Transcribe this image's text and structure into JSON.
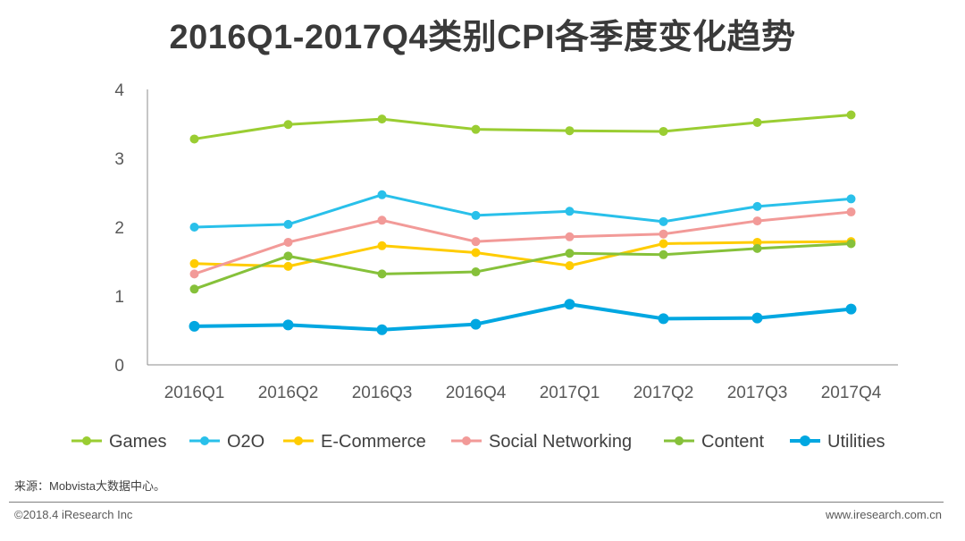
{
  "chart_data": {
    "type": "line",
    "title": "2016Q1-2017Q4类别CPI各季度变化趋势",
    "xlabel": "",
    "ylabel": "",
    "ylim": [
      0,
      4
    ],
    "yticks": [
      "0",
      "1",
      "2",
      "3",
      "4"
    ],
    "grid": false,
    "legend_position": "bottom",
    "categories": [
      "2016Q1",
      "2016Q2",
      "2016Q3",
      "2016Q4",
      "2017Q1",
      "2017Q2",
      "2017Q3",
      "2017Q4"
    ],
    "series": [
      {
        "name": "Games",
        "color": "#9ACD32",
        "values": [
          3.28,
          3.49,
          3.57,
          3.42,
          3.4,
          3.39,
          3.52,
          3.63
        ]
      },
      {
        "name": "O2O",
        "color": "#29C0EA",
        "values": [
          2.0,
          2.04,
          2.47,
          2.17,
          2.23,
          2.08,
          2.3,
          2.41
        ]
      },
      {
        "name": "E-Commerce",
        "color": "#FFCC00",
        "values": [
          1.47,
          1.43,
          1.73,
          1.63,
          1.44,
          1.76,
          1.78,
          1.79
        ]
      },
      {
        "name": "Social Networking",
        "color": "#F29A98",
        "values": [
          1.32,
          1.78,
          2.1,
          1.79,
          1.86,
          1.9,
          2.09,
          2.22
        ]
      },
      {
        "name": "Content",
        "color": "#86C13A",
        "values": [
          1.1,
          1.58,
          1.32,
          1.35,
          1.62,
          1.6,
          1.69,
          1.76
        ]
      },
      {
        "name": "Utilities",
        "color": "#00A7E1",
        "values": [
          0.56,
          0.58,
          0.51,
          0.59,
          0.88,
          0.67,
          0.68,
          0.81
        ]
      }
    ]
  },
  "footer": {
    "source": "来源：Mobvista大数据中心。",
    "copyright": "©2018.4 iResearch Inc",
    "website": "www.iresearch.com.cn"
  }
}
